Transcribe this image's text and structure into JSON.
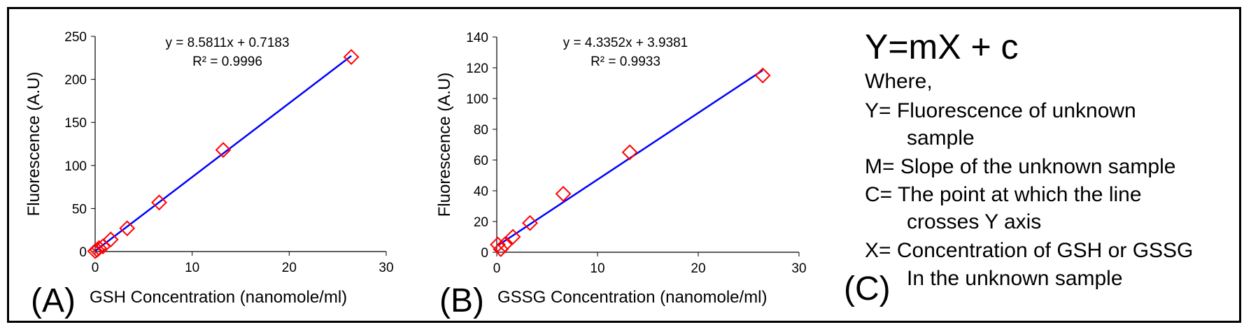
{
  "chart_data": [
    {
      "type": "scatter",
      "panel": "(A)",
      "xlabel": "GSH Concentration (nanomole/ml)",
      "ylabel": "Fluorescence (A.U)",
      "xlim": [
        0,
        30
      ],
      "ylim": [
        0,
        250
      ],
      "xticks": [
        0,
        10,
        20,
        30
      ],
      "yticks": [
        0,
        50,
        100,
        150,
        200,
        250
      ],
      "points": [
        {
          "x": 0.0,
          "y": 0.5
        },
        {
          "x": 0.2,
          "y": 2
        },
        {
          "x": 0.4,
          "y": 4
        },
        {
          "x": 0.8,
          "y": 6
        },
        {
          "x": 1.6,
          "y": 14
        },
        {
          "x": 3.3,
          "y": 27
        },
        {
          "x": 6.6,
          "y": 57
        },
        {
          "x": 13.2,
          "y": 118
        },
        {
          "x": 26.4,
          "y": 226
        }
      ],
      "trendline": {
        "slope": 8.5811,
        "intercept": 0.7183,
        "x_range": [
          0,
          26.4
        ]
      },
      "equation": "y = 8.5811x + 0.7183",
      "r2": "R² = 0.9996",
      "marker_color": "#ff0000",
      "line_color": "#0000ff"
    },
    {
      "type": "scatter",
      "panel": "(B)",
      "xlabel": "GSSG Concentration (nanomole/ml)",
      "ylabel": "Fluorescence (A.U)",
      "xlim": [
        0,
        30
      ],
      "ylim": [
        0,
        140
      ],
      "xticks": [
        0,
        10,
        20,
        30
      ],
      "yticks": [
        0,
        20,
        40,
        60,
        80,
        100,
        120,
        140
      ],
      "points": [
        {
          "x": 0.1,
          "y": 5
        },
        {
          "x": 0.4,
          "y": 2
        },
        {
          "x": 0.8,
          "y": 5
        },
        {
          "x": 1.6,
          "y": 10
        },
        {
          "x": 3.3,
          "y": 19
        },
        {
          "x": 6.6,
          "y": 38
        },
        {
          "x": 13.2,
          "y": 65
        },
        {
          "x": 26.4,
          "y": 115
        }
      ],
      "trendline": {
        "slope": 4.3352,
        "intercept": 3.9381,
        "x_range": [
          0.1,
          26.4
        ]
      },
      "equation": "y = 4.3352x + 3.9381",
      "r2": "R² = 0.9933",
      "marker_color": "#ff0000",
      "line_color": "#0000ff"
    }
  ],
  "panel_c": {
    "letter": "(C)",
    "formula": "Y=mX + c",
    "where": "Where,",
    "lines": [
      "Y=  Fluorescence of  unknown",
      "sample",
      "M= Slope of the unknown sample",
      "C= The  point at which the line",
      "crosses  Y axis",
      "X= Concentration of GSH or GSSG",
      "In the unknown sample"
    ]
  }
}
